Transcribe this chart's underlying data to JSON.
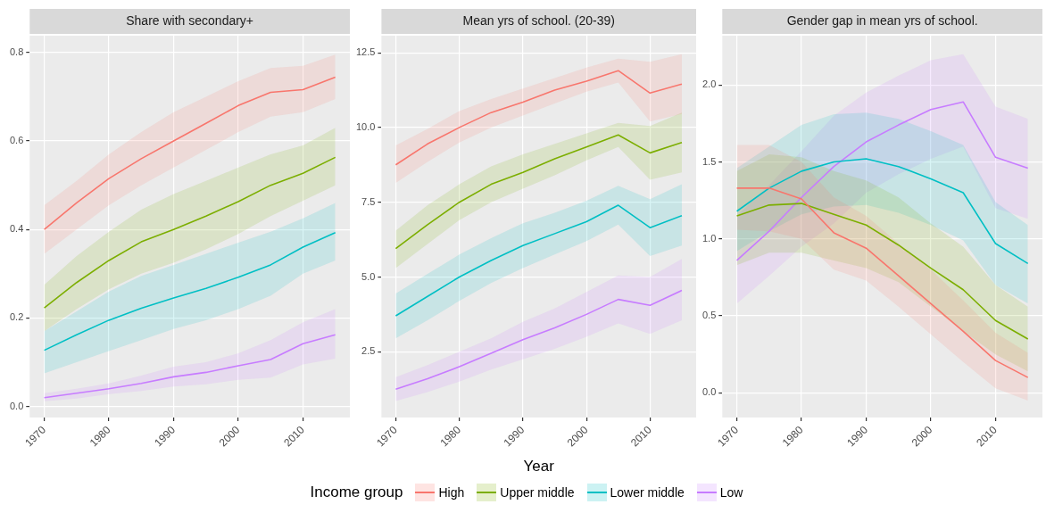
{
  "chart_data": [
    {
      "type": "line",
      "title": "Share with secondary+",
      "legend": "bottom",
      "legend_title": "Income group",
      "x": [
        1970,
        1975,
        1980,
        1985,
        1990,
        1995,
        2000,
        2005,
        2010,
        2015
      ],
      "xlim": [
        1967.75,
        2017.25
      ],
      "ylim": [
        -0.025,
        0.838
      ],
      "xticks": [
        1970,
        1980,
        1990,
        2000,
        2010
      ],
      "yticks": [
        {
          "value": 0,
          "label": "0.0"
        },
        0.2,
        0.4,
        0.6,
        0.8
      ],
      "grid": true,
      "series": [
        {
          "name": "High",
          "color": "#f8766d",
          "values": [
            0.4,
            0.46,
            0.515,
            0.56,
            0.6,
            0.64,
            0.68,
            0.71,
            0.716,
            0.744
          ],
          "lower": [
            0.345,
            0.4,
            0.455,
            0.5,
            0.54,
            0.58,
            0.62,
            0.655,
            0.665,
            0.695
          ],
          "upper": [
            0.455,
            0.51,
            0.57,
            0.62,
            0.665,
            0.7,
            0.735,
            0.765,
            0.77,
            0.795
          ]
        },
        {
          "name": "Upper middle",
          "color": "#7cae00",
          "values": [
            0.223,
            0.28,
            0.33,
            0.372,
            0.4,
            0.43,
            0.463,
            0.5,
            0.527,
            0.563
          ],
          "lower": [
            0.17,
            0.22,
            0.265,
            0.3,
            0.325,
            0.355,
            0.39,
            0.43,
            0.465,
            0.5
          ],
          "upper": [
            0.275,
            0.34,
            0.395,
            0.445,
            0.48,
            0.51,
            0.54,
            0.57,
            0.59,
            0.63
          ]
        },
        {
          "name": "Lower middle",
          "color": "#00bfc4",
          "values": [
            0.127,
            0.162,
            0.195,
            0.222,
            0.245,
            0.267,
            0.292,
            0.32,
            0.36,
            0.393
          ],
          "lower": [
            0.075,
            0.1,
            0.125,
            0.15,
            0.175,
            0.195,
            0.22,
            0.25,
            0.3,
            0.33
          ],
          "upper": [
            0.17,
            0.215,
            0.26,
            0.295,
            0.32,
            0.345,
            0.37,
            0.395,
            0.425,
            0.46
          ]
        },
        {
          "name": "Low",
          "color": "#c77cff",
          "values": [
            0.02,
            0.03,
            0.04,
            0.052,
            0.067,
            0.077,
            0.092,
            0.106,
            0.142,
            0.162
          ],
          "lower": [
            0.012,
            0.018,
            0.028,
            0.035,
            0.045,
            0.05,
            0.06,
            0.065,
            0.095,
            0.108
          ],
          "upper": [
            0.03,
            0.04,
            0.052,
            0.07,
            0.09,
            0.1,
            0.12,
            0.15,
            0.19,
            0.22
          ]
        }
      ]
    },
    {
      "type": "line",
      "title": "Mean yrs of school. (20-39)",
      "xlabel": "Year",
      "x": [
        1970,
        1975,
        1980,
        1985,
        1990,
        1995,
        2000,
        2005,
        2010,
        2015
      ],
      "xlim": [
        1967.75,
        2017.25
      ],
      "ylim": [
        0.3,
        13.07
      ],
      "xticks": [
        1970,
        1980,
        1990,
        2000,
        2010
      ],
      "yticks": [
        2.5,
        {
          "value": 5,
          "label": "5.0"
        },
        7.5,
        {
          "value": 10,
          "label": "10.0"
        },
        12.5
      ],
      "grid": true,
      "series": [
        {
          "color": "#f8766d",
          "values": [
            8.75,
            9.45,
            10.0,
            10.5,
            10.85,
            11.25,
            11.55,
            11.9,
            11.15,
            11.45
          ],
          "lower": [
            8.15,
            8.85,
            9.5,
            10.0,
            10.4,
            10.8,
            11.2,
            11.5,
            10.2,
            10.45
          ],
          "upper": [
            9.4,
            9.95,
            10.55,
            10.95,
            11.3,
            11.65,
            12.0,
            12.3,
            12.2,
            12.45
          ]
        },
        {
          "color": "#7cae00",
          "values": [
            5.95,
            6.75,
            7.5,
            8.1,
            8.5,
            8.95,
            9.35,
            9.75,
            9.15,
            9.5
          ],
          "lower": [
            5.3,
            6.1,
            6.9,
            7.5,
            7.95,
            8.4,
            8.9,
            9.35,
            8.25,
            8.5
          ],
          "upper": [
            6.55,
            7.4,
            8.1,
            8.7,
            9.1,
            9.45,
            9.8,
            10.15,
            10.05,
            10.5
          ]
        },
        {
          "color": "#00bfc4",
          "values": [
            3.7,
            4.35,
            5.0,
            5.55,
            6.05,
            6.45,
            6.85,
            7.4,
            6.65,
            7.05
          ],
          "lower": [
            2.95,
            3.55,
            4.2,
            4.8,
            5.3,
            5.75,
            6.2,
            6.75,
            5.7,
            6.05
          ],
          "upper": [
            4.45,
            5.1,
            5.75,
            6.3,
            6.8,
            7.15,
            7.55,
            8.05,
            7.6,
            8.1
          ]
        },
        {
          "color": "#c77cff",
          "values": [
            1.25,
            1.6,
            2.0,
            2.45,
            2.9,
            3.3,
            3.75,
            4.25,
            4.05,
            4.55
          ],
          "lower": [
            0.85,
            1.15,
            1.5,
            1.9,
            2.25,
            2.6,
            3.0,
            3.45,
            3.1,
            3.55
          ],
          "upper": [
            1.65,
            2.05,
            2.5,
            2.95,
            3.5,
            3.95,
            4.5,
            5.05,
            5.0,
            5.6
          ]
        }
      ]
    },
    {
      "type": "line",
      "title": "Gender gap in mean yrs of school.",
      "x": [
        1970,
        1975,
        1980,
        1985,
        1990,
        1995,
        2000,
        2005,
        2010,
        2015
      ],
      "xlim": [
        1967.75,
        2017.25
      ],
      "ylim": [
        -0.16,
        2.32
      ],
      "xticks": [
        1970,
        1980,
        1990,
        2000,
        2010
      ],
      "yticks": [
        {
          "value": 0,
          "label": "0.0"
        },
        0.5,
        {
          "value": 1,
          "label": "1.0"
        },
        1.5,
        {
          "value": 2,
          "label": "2.0"
        }
      ],
      "grid": true,
      "series": [
        {
          "color": "#f8766d",
          "values": [
            1.33,
            1.33,
            1.26,
            1.04,
            0.94,
            0.76,
            0.58,
            0.4,
            0.21,
            0.1
          ],
          "lower": [
            1.06,
            1.05,
            1.0,
            0.8,
            0.73,
            0.56,
            0.38,
            0.2,
            0.03,
            -0.05
          ],
          "upper": [
            1.61,
            1.61,
            1.5,
            1.27,
            1.15,
            0.97,
            0.8,
            0.6,
            0.39,
            0.26
          ]
        },
        {
          "color": "#7cae00",
          "values": [
            1.15,
            1.22,
            1.23,
            1.16,
            1.09,
            0.96,
            0.81,
            0.67,
            0.47,
            0.35
          ],
          "lower": [
            0.83,
            0.91,
            0.91,
            0.86,
            0.81,
            0.72,
            0.56,
            0.4,
            0.25,
            0.14
          ],
          "upper": [
            1.44,
            1.55,
            1.53,
            1.44,
            1.38,
            1.27,
            1.1,
            0.95,
            0.7,
            0.56
          ]
        },
        {
          "color": "#00bfc4",
          "values": [
            1.18,
            1.33,
            1.44,
            1.5,
            1.52,
            1.47,
            1.39,
            1.3,
            0.97,
            0.84
          ],
          "lower": [
            0.92,
            1.05,
            1.16,
            1.21,
            1.22,
            1.17,
            1.09,
            0.99,
            0.7,
            0.58
          ],
          "upper": [
            1.46,
            1.6,
            1.74,
            1.81,
            1.82,
            1.78,
            1.7,
            1.61,
            1.24,
            1.09
          ]
        },
        {
          "color": "#c77cff",
          "values": [
            0.86,
            1.05,
            1.27,
            1.47,
            1.63,
            1.74,
            1.84,
            1.89,
            1.53,
            1.46
          ],
          "lower": [
            0.58,
            0.76,
            0.95,
            1.1,
            1.3,
            1.42,
            1.52,
            1.6,
            1.2,
            1.13
          ],
          "upper": [
            1.15,
            1.35,
            1.57,
            1.8,
            1.95,
            2.06,
            2.16,
            2.2,
            1.86,
            1.78
          ]
        }
      ]
    }
  ]
}
